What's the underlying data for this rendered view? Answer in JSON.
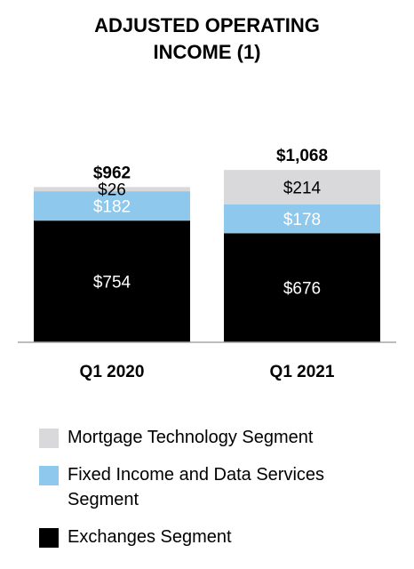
{
  "chart_data": {
    "type": "bar",
    "stacked": true,
    "title": [
      "ADJUSTED OPERATING",
      "INCOME (1)"
    ],
    "categories": [
      "Q1 2020",
      "Q1 2021"
    ],
    "totals": [
      "$962",
      "$1,068"
    ],
    "totals_values": [
      962,
      1068
    ],
    "series": [
      {
        "name": "Exchanges Segment",
        "color": "#000000",
        "label_color": "#ffffff",
        "values": [
          754,
          676
        ],
        "labels": [
          "$754",
          "$676"
        ]
      },
      {
        "name": "Fixed Income and Data Services Segment",
        "color": "#8ec8ec",
        "label_color": "#ffffff",
        "values": [
          182,
          178
        ],
        "labels": [
          "$182",
          "$178"
        ]
      },
      {
        "name": "Mortgage Technology Segment",
        "color": "#d9d9db",
        "label_color": "#000000",
        "values": [
          26,
          214
        ],
        "labels": [
          "$26",
          "$214"
        ]
      }
    ],
    "legend_order": [
      2,
      1,
      0
    ],
    "legend_lines": [
      [
        "Mortgage Technology Segment"
      ],
      [
        "Fixed Income and Data Services",
        "Segment"
      ],
      [
        "Exchanges Segment"
      ]
    ],
    "ylim": [
      0,
      1260
    ],
    "grid": false,
    "legend_position": "bottom"
  }
}
